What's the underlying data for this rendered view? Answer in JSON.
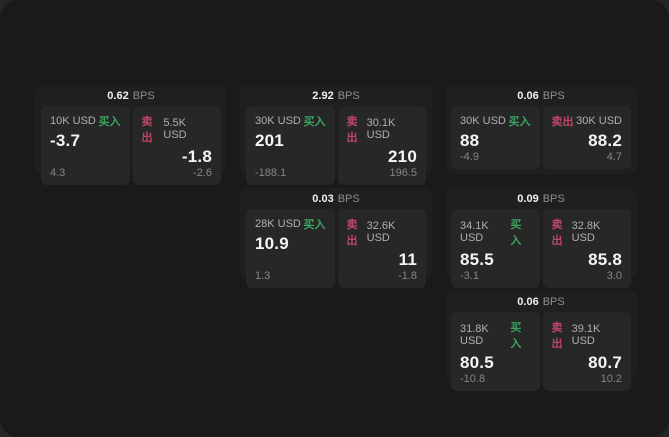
{
  "labels": {
    "bps": "BPS",
    "buy": "买入",
    "sell": "卖出"
  },
  "colors": {
    "backdrop": "#262626",
    "page_bg": "#1a1a1a",
    "card_bg": "#1f1f1f",
    "panel_bg": "#272727",
    "buy_green": "#3aa45e",
    "sell_red": "#bf4664"
  },
  "cards": [
    {
      "bps": "0.62",
      "buy": {
        "amount": "10K USD",
        "price": "-3.7",
        "delta": "4.3"
      },
      "sell": {
        "amount": "5.5K USD",
        "price": "-1.8",
        "delta": "-2.6"
      }
    },
    {
      "bps": "2.92",
      "buy": {
        "amount": "30K USD",
        "price": "201",
        "delta": "-188.1"
      },
      "sell": {
        "amount": "30.1K USD",
        "price": "210",
        "delta": "196.5"
      }
    },
    {
      "bps": "0.06",
      "buy": {
        "amount": "30K USD",
        "price": "88",
        "delta": "-4.9"
      },
      "sell": {
        "amount": "30K USD",
        "price": "88.2",
        "delta": "4.7"
      }
    },
    {
      "bps": "0.03",
      "buy": {
        "amount": "28K USD",
        "price": "10.9",
        "delta": "1.3"
      },
      "sell": {
        "amount": "32.6K USD",
        "price": "11",
        "delta": "-1.8"
      }
    },
    {
      "bps": "0.09",
      "buy": {
        "amount": "34.1K USD",
        "price": "85.5",
        "delta": "-3.1"
      },
      "sell": {
        "amount": "32.8K USD",
        "price": "85.8",
        "delta": "3.0"
      }
    },
    {
      "bps": "0.06",
      "buy": {
        "amount": "31.8K USD",
        "price": "80.5",
        "delta": "-10.8"
      },
      "sell": {
        "amount": "39.1K USD",
        "price": "80.7",
        "delta": "10.2"
      }
    }
  ]
}
